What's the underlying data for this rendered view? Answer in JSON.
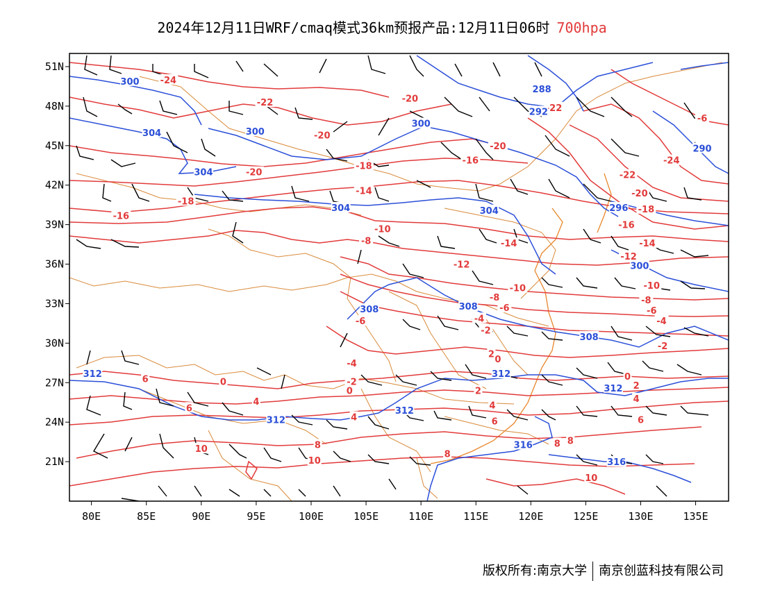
{
  "title": {
    "main": "2024年12月11日WRF/cmaq模式36km预报产品:12月11日06时",
    "level": "700hpa",
    "level_color": "#e23a3a"
  },
  "colors": {
    "temperature_contour": "#e23a3a",
    "height_contour": "#2b4fd8",
    "boundary": "#d98a3a",
    "wind_barb": "#000000"
  },
  "map": {
    "lon_range": [
      78,
      138
    ],
    "lat_range": [
      18,
      52
    ],
    "x_ticks": [
      "80E",
      "85E",
      "90E",
      "95E",
      "100E",
      "105E",
      "110E",
      "115E",
      "120E",
      "125E",
      "130E",
      "135E"
    ],
    "y_ticks": [
      "51N",
      "48N",
      "45N",
      "42N",
      "39N",
      "36N",
      "33N",
      "30N",
      "27N",
      "24N",
      "21N"
    ],
    "temperature_labels": [
      {
        "text": "-24",
        "lon": 87,
        "lat": 50.0
      },
      {
        "text": "-22",
        "lon": 95.8,
        "lat": 48.3
      },
      {
        "text": "-20",
        "lon": 109,
        "lat": 48.6
      },
      {
        "text": "-20",
        "lon": 101,
        "lat": 45.8
      },
      {
        "text": "-20",
        "lon": 94.8,
        "lat": 43.0
      },
      {
        "text": "-20",
        "lon": 117,
        "lat": 45.0
      },
      {
        "text": "-18",
        "lon": 104.8,
        "lat": 43.5
      },
      {
        "text": "-18",
        "lon": 88.6,
        "lat": 40.8
      },
      {
        "text": "-16",
        "lon": 82.7,
        "lat": 39.7
      },
      {
        "text": "-16",
        "lon": 114.5,
        "lat": 43.9
      },
      {
        "text": "-14",
        "lon": 104.8,
        "lat": 41.6
      },
      {
        "text": "-10",
        "lon": 106.5,
        "lat": 38.7
      },
      {
        "text": "-8",
        "lon": 105,
        "lat": 37.8
      },
      {
        "text": "-14",
        "lon": 118,
        "lat": 37.6
      },
      {
        "text": "-12",
        "lon": 113.7,
        "lat": 36.0
      },
      {
        "text": "-10",
        "lon": 118.8,
        "lat": 34.2
      },
      {
        "text": "-8",
        "lon": 116.7,
        "lat": 33.5
      },
      {
        "text": "-6",
        "lon": 117.6,
        "lat": 32.7
      },
      {
        "text": "-4",
        "lon": 115.3,
        "lat": 31.9
      },
      {
        "text": "-2",
        "lon": 115.9,
        "lat": 31.0
      },
      {
        "text": "-6",
        "lon": 104.5,
        "lat": 31.7
      },
      {
        "text": "-4",
        "lon": 103.7,
        "lat": 28.5
      },
      {
        "text": "-2",
        "lon": 103.7,
        "lat": 27.1
      },
      {
        "text": "0",
        "lon": 103.5,
        "lat": 26.4
      },
      {
        "text": "0",
        "lon": 92,
        "lat": 27.1
      },
      {
        "text": "2",
        "lon": 116.4,
        "lat": 29.2
      },
      {
        "text": "0",
        "lon": 117,
        "lat": 28.8
      },
      {
        "text": "2",
        "lon": 115.2,
        "lat": 26.4
      },
      {
        "text": "4",
        "lon": 95,
        "lat": 25.6
      },
      {
        "text": "4",
        "lon": 103.9,
        "lat": 24.4
      },
      {
        "text": "4",
        "lon": 116.5,
        "lat": 25.3
      },
      {
        "text": "6",
        "lon": 84.9,
        "lat": 27.3
      },
      {
        "text": "6",
        "lon": 88.9,
        "lat": 25.1
      },
      {
        "text": "6",
        "lon": 116.7,
        "lat": 24.1
      },
      {
        "text": "8",
        "lon": 100.6,
        "lat": 22.3
      },
      {
        "text": "8",
        "lon": 112.4,
        "lat": 21.6
      },
      {
        "text": "8",
        "lon": 122.4,
        "lat": 22.4
      },
      {
        "text": "10",
        "lon": 90,
        "lat": 22.0
      },
      {
        "text": "10",
        "lon": 100.3,
        "lat": 21.1
      },
      {
        "text": "10",
        "lon": 125.5,
        "lat": 19.8
      },
      {
        "text": "-22",
        "lon": 122.1,
        "lat": 47.9
      },
      {
        "text": "-22",
        "lon": 128.8,
        "lat": 42.8
      },
      {
        "text": "-24",
        "lon": 132.8,
        "lat": 43.9
      },
      {
        "text": "-20",
        "lon": 129.9,
        "lat": 41.4
      },
      {
        "text": "-18",
        "lon": 130.5,
        "lat": 40.2
      },
      {
        "text": "-16",
        "lon": 128.7,
        "lat": 39.0
      },
      {
        "text": "-14",
        "lon": 130.6,
        "lat": 37.6
      },
      {
        "text": "-12",
        "lon": 128.9,
        "lat": 36.6
      },
      {
        "text": "-10",
        "lon": 131,
        "lat": 34.4
      },
      {
        "text": "-8",
        "lon": 130.5,
        "lat": 33.3
      },
      {
        "text": "-6",
        "lon": 131,
        "lat": 32.5
      },
      {
        "text": "-4",
        "lon": 131.9,
        "lat": 31.7
      },
      {
        "text": "-2",
        "lon": 132,
        "lat": 29.8
      },
      {
        "text": "0",
        "lon": 128.8,
        "lat": 27.5
      },
      {
        "text": "2",
        "lon": 129.6,
        "lat": 26.8
      },
      {
        "text": "4",
        "lon": 129.6,
        "lat": 25.8
      },
      {
        "text": "6",
        "lon": 130,
        "lat": 24.2
      },
      {
        "text": "8",
        "lon": 123.6,
        "lat": 22.6
      },
      {
        "text": "-6",
        "lon": 135.6,
        "lat": 47.1
      }
    ],
    "height_labels": [
      {
        "text": "300",
        "lon": 83.5,
        "lat": 49.9
      },
      {
        "text": "304",
        "lon": 85.5,
        "lat": 46.0
      },
      {
        "text": "304",
        "lon": 90.2,
        "lat": 43.0
      },
      {
        "text": "300",
        "lon": 94.9,
        "lat": 46.1
      },
      {
        "text": "300",
        "lon": 110,
        "lat": 46.7
      },
      {
        "text": "288",
        "lon": 121,
        "lat": 49.3
      },
      {
        "text": "292",
        "lon": 120.7,
        "lat": 47.6
      },
      {
        "text": "290",
        "lon": 135.6,
        "lat": 44.8
      },
      {
        "text": "296",
        "lon": 128,
        "lat": 40.3
      },
      {
        "text": "304",
        "lon": 102.7,
        "lat": 40.3
      },
      {
        "text": "304",
        "lon": 116.2,
        "lat": 40.1
      },
      {
        "text": "300",
        "lon": 129.9,
        "lat": 35.9
      },
      {
        "text": "308",
        "lon": 105.3,
        "lat": 32.6
      },
      {
        "text": "308",
        "lon": 114.3,
        "lat": 32.8
      },
      {
        "text": "308",
        "lon": 125.3,
        "lat": 30.5
      },
      {
        "text": "312",
        "lon": 80.1,
        "lat": 27.7
      },
      {
        "text": "312",
        "lon": 96.8,
        "lat": 24.2
      },
      {
        "text": "312",
        "lon": 108.5,
        "lat": 24.9
      },
      {
        "text": "312",
        "lon": 117.3,
        "lat": 27.7
      },
      {
        "text": "312",
        "lon": 127.5,
        "lat": 26.6
      },
      {
        "text": "316",
        "lon": 119.3,
        "lat": 22.3
      },
      {
        "text": "316",
        "lon": 127.8,
        "lat": 21.0
      }
    ]
  },
  "footer": {
    "owner_prefix": "版权所有:",
    "org1": "南京大学",
    "org2": "南京创蓝科技有限公司"
  }
}
